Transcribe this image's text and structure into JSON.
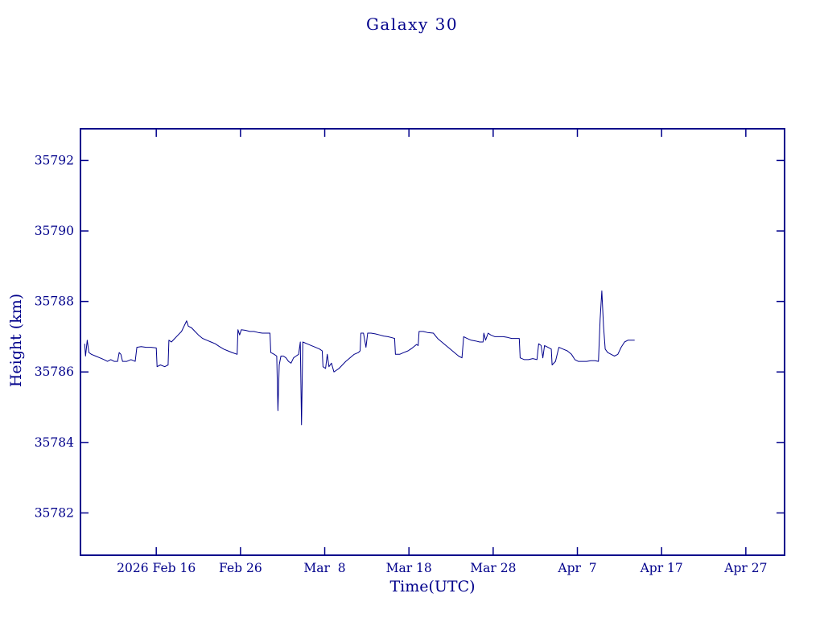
{
  "chart_data": {
    "type": "line",
    "title": "Galaxy 30",
    "xlabel": "Time(UTC)",
    "ylabel": "Height (km)",
    "axis_color": "#00008b",
    "line_color": "#00008b",
    "x_unit": "days since 2026-02-07 00:00 UTC",
    "xlim": [
      0,
      83.6
    ],
    "ylim": [
      35780.8,
      35792.9
    ],
    "grid": false,
    "legend": "none",
    "x_ticks": [
      {
        "pos": 9,
        "label": "2026 Feb 16"
      },
      {
        "pos": 19,
        "label": "Feb 26"
      },
      {
        "pos": 29,
        "label": "Mar  8"
      },
      {
        "pos": 39,
        "label": "Mar 18"
      },
      {
        "pos": 49,
        "label": "Mar 28"
      },
      {
        "pos": 59,
        "label": "Apr  7"
      },
      {
        "pos": 69,
        "label": "Apr 17"
      },
      {
        "pos": 79,
        "label": "Apr 27"
      }
    ],
    "y_ticks": [
      {
        "pos": 35782,
        "label": "35782"
      },
      {
        "pos": 35784,
        "label": "35784"
      },
      {
        "pos": 35786,
        "label": "35786"
      },
      {
        "pos": 35788,
        "label": "35788"
      },
      {
        "pos": 35790,
        "label": "35790"
      },
      {
        "pos": 35792,
        "label": "35792"
      }
    ],
    "series": [
      {
        "name": "Height",
        "points": [
          [
            0.5,
            35786.8
          ],
          [
            0.6,
            35786.45
          ],
          [
            0.8,
            35786.9
          ],
          [
            1.0,
            35786.55
          ],
          [
            1.3,
            35786.5
          ],
          [
            1.8,
            35786.45
          ],
          [
            2.3,
            35786.4
          ],
          [
            2.8,
            35786.35
          ],
          [
            3.2,
            35786.3
          ],
          [
            3.6,
            35786.35
          ],
          [
            4.0,
            35786.3
          ],
          [
            4.4,
            35786.3
          ],
          [
            4.6,
            35786.55
          ],
          [
            4.8,
            35786.5
          ],
          [
            5.0,
            35786.3
          ],
          [
            5.5,
            35786.3
          ],
          [
            6.0,
            35786.35
          ],
          [
            6.5,
            35786.3
          ],
          [
            6.7,
            35786.7
          ],
          [
            7.2,
            35786.72
          ],
          [
            7.8,
            35786.7
          ],
          [
            8.4,
            35786.7
          ],
          [
            9.0,
            35786.68
          ],
          [
            9.1,
            35786.15
          ],
          [
            9.5,
            35786.2
          ],
          [
            10.0,
            35786.15
          ],
          [
            10.4,
            35786.2
          ],
          [
            10.5,
            35786.9
          ],
          [
            10.8,
            35786.85
          ],
          [
            11.2,
            35786.95
          ],
          [
            11.6,
            35787.05
          ],
          [
            12.0,
            35787.15
          ],
          [
            12.4,
            35787.35
          ],
          [
            12.6,
            35787.45
          ],
          [
            12.8,
            35787.3
          ],
          [
            13.2,
            35787.25
          ],
          [
            13.6,
            35787.15
          ],
          [
            14.0,
            35787.05
          ],
          [
            14.5,
            35786.95
          ],
          [
            15.0,
            35786.9
          ],
          [
            15.5,
            35786.85
          ],
          [
            16.0,
            35786.8
          ],
          [
            16.5,
            35786.72
          ],
          [
            17.0,
            35786.65
          ],
          [
            17.5,
            35786.6
          ],
          [
            18.0,
            35786.55
          ],
          [
            18.6,
            35786.5
          ],
          [
            18.7,
            35787.2
          ],
          [
            18.9,
            35787.05
          ],
          [
            19.1,
            35787.2
          ],
          [
            19.6,
            35787.18
          ],
          [
            20.1,
            35787.15
          ],
          [
            20.6,
            35787.15
          ],
          [
            21.1,
            35787.12
          ],
          [
            21.6,
            35787.1
          ],
          [
            22.1,
            35787.1
          ],
          [
            22.5,
            35787.1
          ],
          [
            22.6,
            35786.55
          ],
          [
            23.0,
            35786.5
          ],
          [
            23.3,
            35786.45
          ],
          [
            23.45,
            35784.9
          ],
          [
            23.6,
            35786.2
          ],
          [
            23.8,
            35786.45
          ],
          [
            24.1,
            35786.45
          ],
          [
            24.4,
            35786.4
          ],
          [
            24.7,
            35786.3
          ],
          [
            25.0,
            35786.25
          ],
          [
            25.3,
            35786.4
          ],
          [
            25.6,
            35786.45
          ],
          [
            25.9,
            35786.5
          ],
          [
            26.1,
            35786.85
          ],
          [
            26.25,
            35784.5
          ],
          [
            26.4,
            35786.85
          ],
          [
            26.9,
            35786.8
          ],
          [
            27.4,
            35786.75
          ],
          [
            27.9,
            35786.7
          ],
          [
            28.4,
            35786.65
          ],
          [
            28.7,
            35786.6
          ],
          [
            28.8,
            35786.15
          ],
          [
            29.1,
            35786.1
          ],
          [
            29.3,
            35786.5
          ],
          [
            29.5,
            35786.15
          ],
          [
            29.8,
            35786.25
          ],
          [
            30.1,
            35786.0
          ],
          [
            30.4,
            35786.05
          ],
          [
            30.7,
            35786.1
          ],
          [
            31.1,
            35786.2
          ],
          [
            31.5,
            35786.3
          ],
          [
            32.0,
            35786.4
          ],
          [
            32.5,
            35786.5
          ],
          [
            33.0,
            35786.55
          ],
          [
            33.2,
            35786.6
          ],
          [
            33.3,
            35787.1
          ],
          [
            33.6,
            35787.1
          ],
          [
            33.9,
            35786.7
          ],
          [
            34.1,
            35787.1
          ],
          [
            34.5,
            35787.1
          ],
          [
            35.0,
            35787.08
          ],
          [
            35.5,
            35787.05
          ],
          [
            36.0,
            35787.02
          ],
          [
            36.5,
            35787.0
          ],
          [
            37.0,
            35786.97
          ],
          [
            37.3,
            35786.95
          ],
          [
            37.4,
            35786.5
          ],
          [
            37.9,
            35786.5
          ],
          [
            38.4,
            35786.55
          ],
          [
            38.9,
            35786.6
          ],
          [
            39.4,
            35786.68
          ],
          [
            39.9,
            35786.78
          ],
          [
            40.1,
            35786.75
          ],
          [
            40.2,
            35787.15
          ],
          [
            40.7,
            35787.15
          ],
          [
            41.2,
            35787.12
          ],
          [
            41.9,
            35787.1
          ],
          [
            42.4,
            35786.95
          ],
          [
            42.9,
            35786.85
          ],
          [
            43.4,
            35786.75
          ],
          [
            43.9,
            35786.65
          ],
          [
            44.4,
            35786.55
          ],
          [
            44.9,
            35786.45
          ],
          [
            45.3,
            35786.4
          ],
          [
            45.5,
            35787.0
          ],
          [
            45.9,
            35786.95
          ],
          [
            46.4,
            35786.9
          ],
          [
            46.9,
            35786.88
          ],
          [
            47.4,
            35786.85
          ],
          [
            47.8,
            35786.85
          ],
          [
            47.9,
            35787.1
          ],
          [
            48.1,
            35786.9
          ],
          [
            48.4,
            35787.1
          ],
          [
            48.7,
            35787.05
          ],
          [
            49.2,
            35787.0
          ],
          [
            49.7,
            35787.0
          ],
          [
            50.2,
            35787.0
          ],
          [
            50.7,
            35786.98
          ],
          [
            51.2,
            35786.95
          ],
          [
            51.7,
            35786.95
          ],
          [
            52.1,
            35786.95
          ],
          [
            52.2,
            35786.4
          ],
          [
            52.7,
            35786.35
          ],
          [
            53.2,
            35786.35
          ],
          [
            53.7,
            35786.38
          ],
          [
            54.2,
            35786.35
          ],
          [
            54.4,
            35786.8
          ],
          [
            54.7,
            35786.75
          ],
          [
            54.9,
            35786.4
          ],
          [
            55.1,
            35786.75
          ],
          [
            55.5,
            35786.7
          ],
          [
            55.9,
            35786.65
          ],
          [
            56.0,
            35786.2
          ],
          [
            56.4,
            35786.3
          ],
          [
            56.8,
            35786.7
          ],
          [
            57.3,
            35786.65
          ],
          [
            57.8,
            35786.6
          ],
          [
            58.3,
            35786.5
          ],
          [
            58.7,
            35786.35
          ],
          [
            59.1,
            35786.3
          ],
          [
            59.6,
            35786.3
          ],
          [
            60.1,
            35786.3
          ],
          [
            60.6,
            35786.32
          ],
          [
            61.1,
            35786.32
          ],
          [
            61.5,
            35786.3
          ],
          [
            61.7,
            35787.5
          ],
          [
            61.9,
            35788.3
          ],
          [
            62.1,
            35787.3
          ],
          [
            62.3,
            35786.65
          ],
          [
            62.6,
            35786.55
          ],
          [
            63.0,
            35786.5
          ],
          [
            63.4,
            35786.45
          ],
          [
            63.8,
            35786.5
          ],
          [
            64.2,
            35786.7
          ],
          [
            64.6,
            35786.85
          ],
          [
            65.0,
            35786.9
          ],
          [
            65.4,
            35786.9
          ],
          [
            65.8,
            35786.9
          ]
        ]
      }
    ]
  }
}
